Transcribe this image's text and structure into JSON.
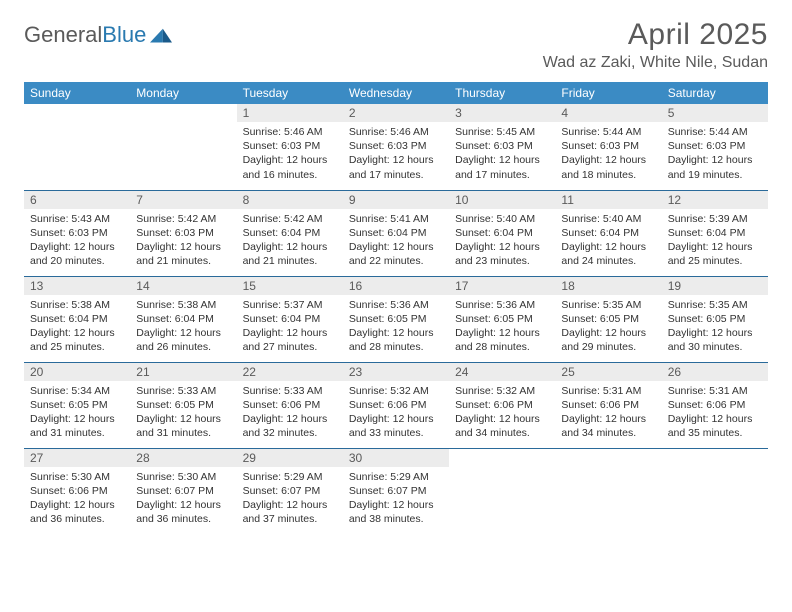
{
  "logo": {
    "text1": "General",
    "text2": "Blue"
  },
  "title": "April 2025",
  "location": "Wad az Zaki, White Nile, Sudan",
  "colors": {
    "header_bg": "#3b8bc4",
    "header_text": "#ffffff",
    "daynum_bg": "#ececec",
    "row_border": "#2a6a9a",
    "title_color": "#5a5a5a",
    "logo_blue": "#2a7ab0"
  },
  "weekdays": [
    "Sunday",
    "Monday",
    "Tuesday",
    "Wednesday",
    "Thursday",
    "Friday",
    "Saturday"
  ],
  "weeks": [
    [
      null,
      null,
      {
        "n": "1",
        "sr": "5:46 AM",
        "ss": "6:03 PM",
        "dl": "12 hours and 16 minutes."
      },
      {
        "n": "2",
        "sr": "5:46 AM",
        "ss": "6:03 PM",
        "dl": "12 hours and 17 minutes."
      },
      {
        "n": "3",
        "sr": "5:45 AM",
        "ss": "6:03 PM",
        "dl": "12 hours and 17 minutes."
      },
      {
        "n": "4",
        "sr": "5:44 AM",
        "ss": "6:03 PM",
        "dl": "12 hours and 18 minutes."
      },
      {
        "n": "5",
        "sr": "5:44 AM",
        "ss": "6:03 PM",
        "dl": "12 hours and 19 minutes."
      }
    ],
    [
      {
        "n": "6",
        "sr": "5:43 AM",
        "ss": "6:03 PM",
        "dl": "12 hours and 20 minutes."
      },
      {
        "n": "7",
        "sr": "5:42 AM",
        "ss": "6:03 PM",
        "dl": "12 hours and 21 minutes."
      },
      {
        "n": "8",
        "sr": "5:42 AM",
        "ss": "6:04 PM",
        "dl": "12 hours and 21 minutes."
      },
      {
        "n": "9",
        "sr": "5:41 AM",
        "ss": "6:04 PM",
        "dl": "12 hours and 22 minutes."
      },
      {
        "n": "10",
        "sr": "5:40 AM",
        "ss": "6:04 PM",
        "dl": "12 hours and 23 minutes."
      },
      {
        "n": "11",
        "sr": "5:40 AM",
        "ss": "6:04 PM",
        "dl": "12 hours and 24 minutes."
      },
      {
        "n": "12",
        "sr": "5:39 AM",
        "ss": "6:04 PM",
        "dl": "12 hours and 25 minutes."
      }
    ],
    [
      {
        "n": "13",
        "sr": "5:38 AM",
        "ss": "6:04 PM",
        "dl": "12 hours and 25 minutes."
      },
      {
        "n": "14",
        "sr": "5:38 AM",
        "ss": "6:04 PM",
        "dl": "12 hours and 26 minutes."
      },
      {
        "n": "15",
        "sr": "5:37 AM",
        "ss": "6:04 PM",
        "dl": "12 hours and 27 minutes."
      },
      {
        "n": "16",
        "sr": "5:36 AM",
        "ss": "6:05 PM",
        "dl": "12 hours and 28 minutes."
      },
      {
        "n": "17",
        "sr": "5:36 AM",
        "ss": "6:05 PM",
        "dl": "12 hours and 28 minutes."
      },
      {
        "n": "18",
        "sr": "5:35 AM",
        "ss": "6:05 PM",
        "dl": "12 hours and 29 minutes."
      },
      {
        "n": "19",
        "sr": "5:35 AM",
        "ss": "6:05 PM",
        "dl": "12 hours and 30 minutes."
      }
    ],
    [
      {
        "n": "20",
        "sr": "5:34 AM",
        "ss": "6:05 PM",
        "dl": "12 hours and 31 minutes."
      },
      {
        "n": "21",
        "sr": "5:33 AM",
        "ss": "6:05 PM",
        "dl": "12 hours and 31 minutes."
      },
      {
        "n": "22",
        "sr": "5:33 AM",
        "ss": "6:06 PM",
        "dl": "12 hours and 32 minutes."
      },
      {
        "n": "23",
        "sr": "5:32 AM",
        "ss": "6:06 PM",
        "dl": "12 hours and 33 minutes."
      },
      {
        "n": "24",
        "sr": "5:32 AM",
        "ss": "6:06 PM",
        "dl": "12 hours and 34 minutes."
      },
      {
        "n": "25",
        "sr": "5:31 AM",
        "ss": "6:06 PM",
        "dl": "12 hours and 34 minutes."
      },
      {
        "n": "26",
        "sr": "5:31 AM",
        "ss": "6:06 PM",
        "dl": "12 hours and 35 minutes."
      }
    ],
    [
      {
        "n": "27",
        "sr": "5:30 AM",
        "ss": "6:06 PM",
        "dl": "12 hours and 36 minutes."
      },
      {
        "n": "28",
        "sr": "5:30 AM",
        "ss": "6:07 PM",
        "dl": "12 hours and 36 minutes."
      },
      {
        "n": "29",
        "sr": "5:29 AM",
        "ss": "6:07 PM",
        "dl": "12 hours and 37 minutes."
      },
      {
        "n": "30",
        "sr": "5:29 AM",
        "ss": "6:07 PM",
        "dl": "12 hours and 38 minutes."
      },
      null,
      null,
      null
    ]
  ],
  "labels": {
    "sunrise": "Sunrise:",
    "sunset": "Sunset:",
    "daylight": "Daylight:"
  }
}
